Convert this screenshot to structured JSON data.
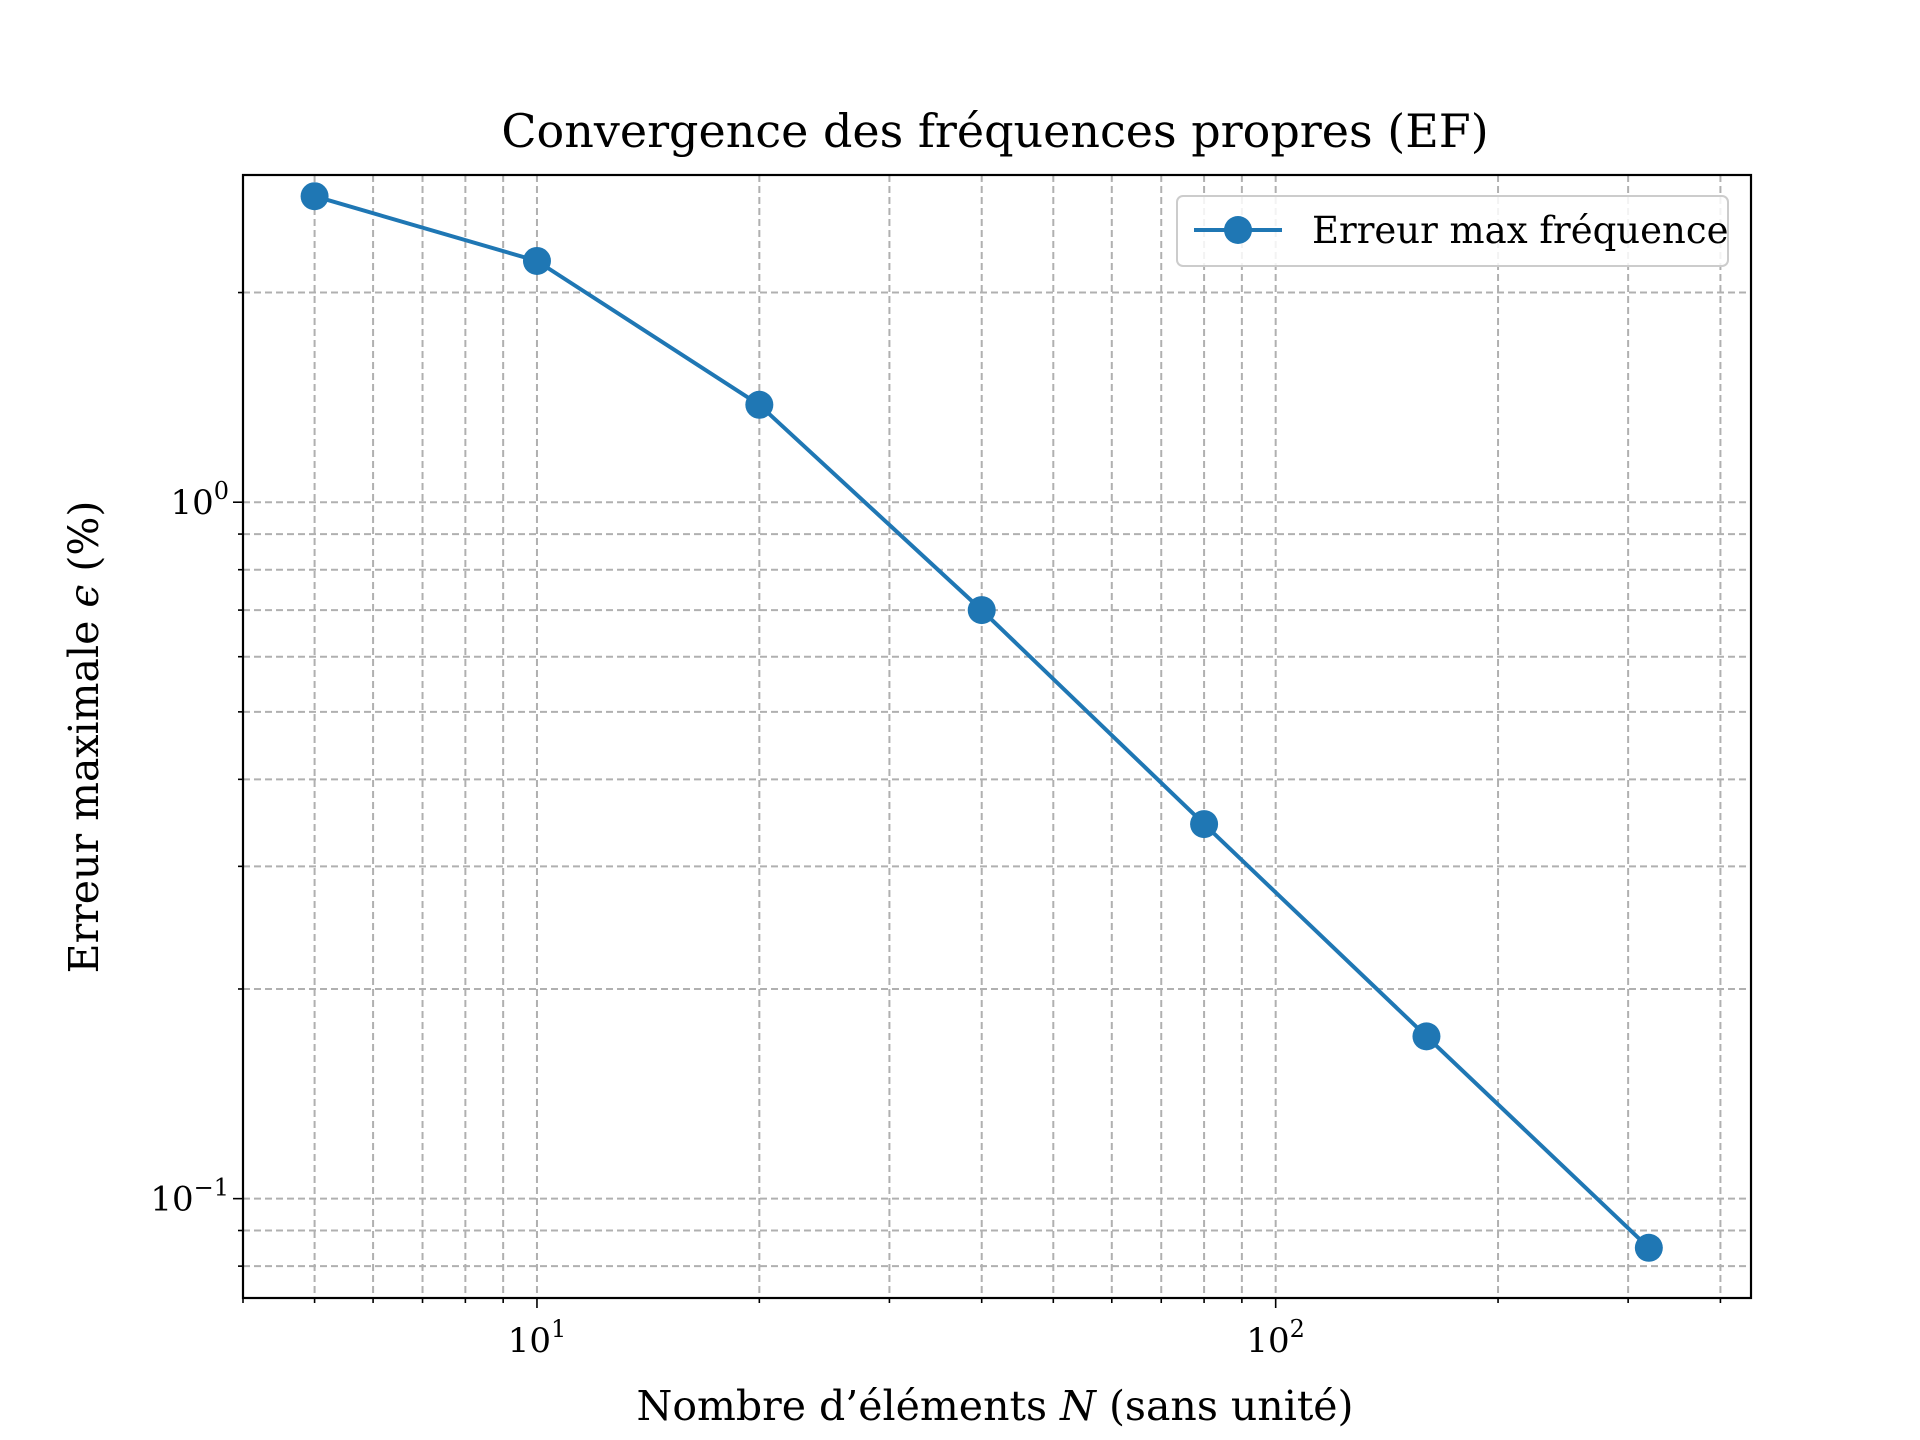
{
  "chart_data": {
    "type": "line",
    "title": "Convergence des fréquences propres (EF)",
    "xlabel_prefix": "Nombre d’éléments ",
    "xlabel_var": "N",
    "xlabel_suffix": " (sans unité)",
    "ylabel_prefix": "Erreur maximale ",
    "ylabel_var": "ϵ",
    "ylabel_suffix": " (%)",
    "xscale": "log",
    "yscale": "log",
    "xlim": [
      4.0,
      440
    ],
    "ylim": [
      0.072,
      2.95
    ],
    "xticks": [
      {
        "base": "10",
        "exp": "1",
        "value": 10
      },
      {
        "base": "10",
        "exp": "2",
        "value": 100
      }
    ],
    "yticks": [
      {
        "base": "10",
        "exp": "0",
        "value": 1
      },
      {
        "base": "10",
        "exp": "−1",
        "value": 0.1
      }
    ],
    "grid": true,
    "legend_position": "top-right",
    "series": [
      {
        "name": "Erreur max fréquence",
        "color": "#1f77b4",
        "marker": "circle",
        "x": [
          5,
          10,
          20,
          40,
          80,
          160,
          320
        ],
        "y": [
          2.75,
          2.22,
          1.38,
          0.7,
          0.345,
          0.171,
          0.085
        ]
      }
    ]
  }
}
